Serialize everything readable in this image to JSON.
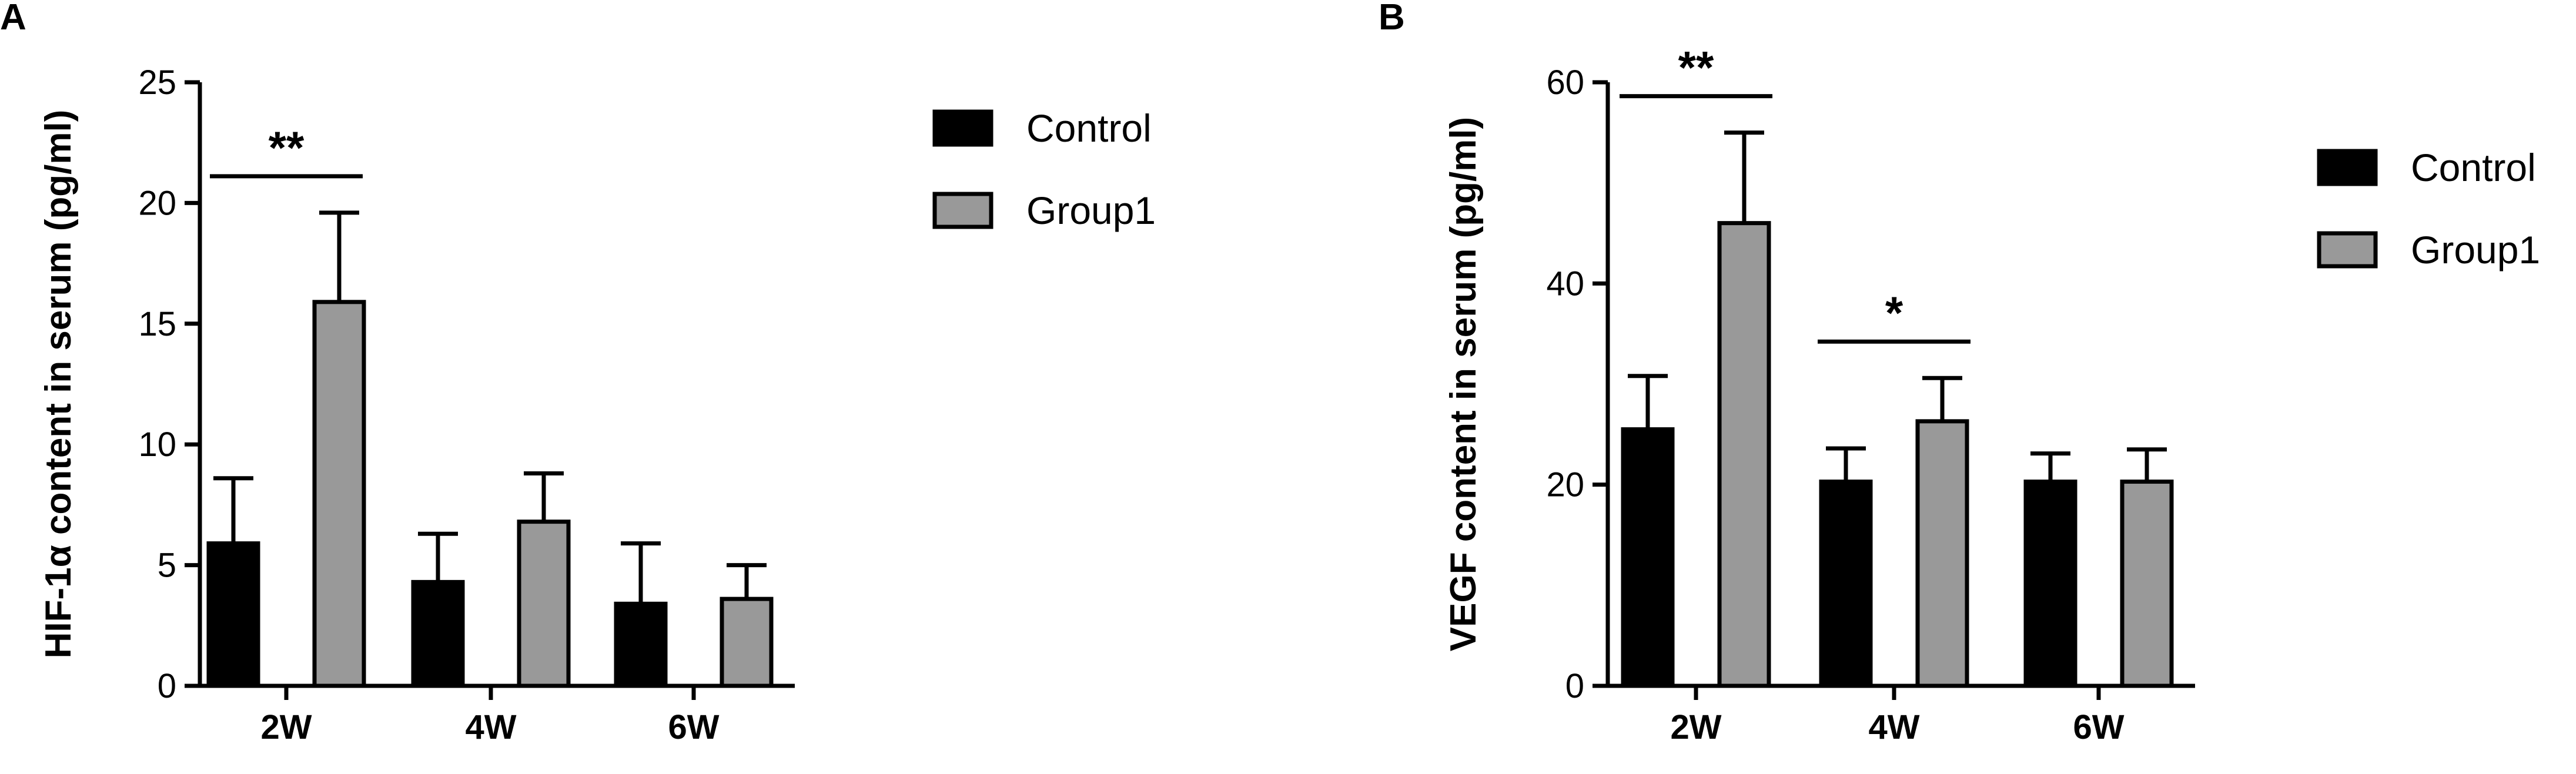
{
  "chart_data": [
    {
      "type": "bar",
      "panel": "A",
      "ylabel": "HIF-1α content in serum (pg/ml)",
      "xlabel": "",
      "categories": [
        "2W",
        "4W",
        "6W"
      ],
      "ylim": [
        0,
        25
      ],
      "yticks": [
        0,
        5,
        10,
        15,
        20,
        25
      ],
      "series": [
        {
          "name": "Control",
          "values": [
            5.9,
            4.3,
            3.4
          ],
          "errors": [
            2.7,
            2.0,
            2.5
          ],
          "color": "#000000"
        },
        {
          "name": "Group1",
          "values": [
            15.9,
            6.8,
            3.6
          ],
          "errors": [
            3.7,
            2.0,
            1.4
          ],
          "color": "#999999"
        }
      ],
      "significance": [
        {
          "category": "2W",
          "label": "**"
        }
      ],
      "legend": "right",
      "grid": false
    },
    {
      "type": "bar",
      "panel": "B",
      "ylabel": "VEGF content in serum (pg/ml)",
      "xlabel": "",
      "categories": [
        "2W",
        "4W",
        "6W"
      ],
      "ylim": [
        0,
        60
      ],
      "yticks": [
        0,
        20,
        40,
        60
      ],
      "series": [
        {
          "name": "Control",
          "values": [
            25.5,
            20.3,
            20.3
          ],
          "errors": [
            5.3,
            3.3,
            2.8
          ],
          "color": "#000000"
        },
        {
          "name": "Group1",
          "values": [
            46.0,
            26.3,
            20.3
          ],
          "errors": [
            9.0,
            4.3,
            3.2
          ],
          "color": "#999999"
        }
      ],
      "significance": [
        {
          "category": "2W",
          "label": "**"
        },
        {
          "category": "4W",
          "label": "*"
        }
      ],
      "legend": "right",
      "grid": false
    }
  ]
}
